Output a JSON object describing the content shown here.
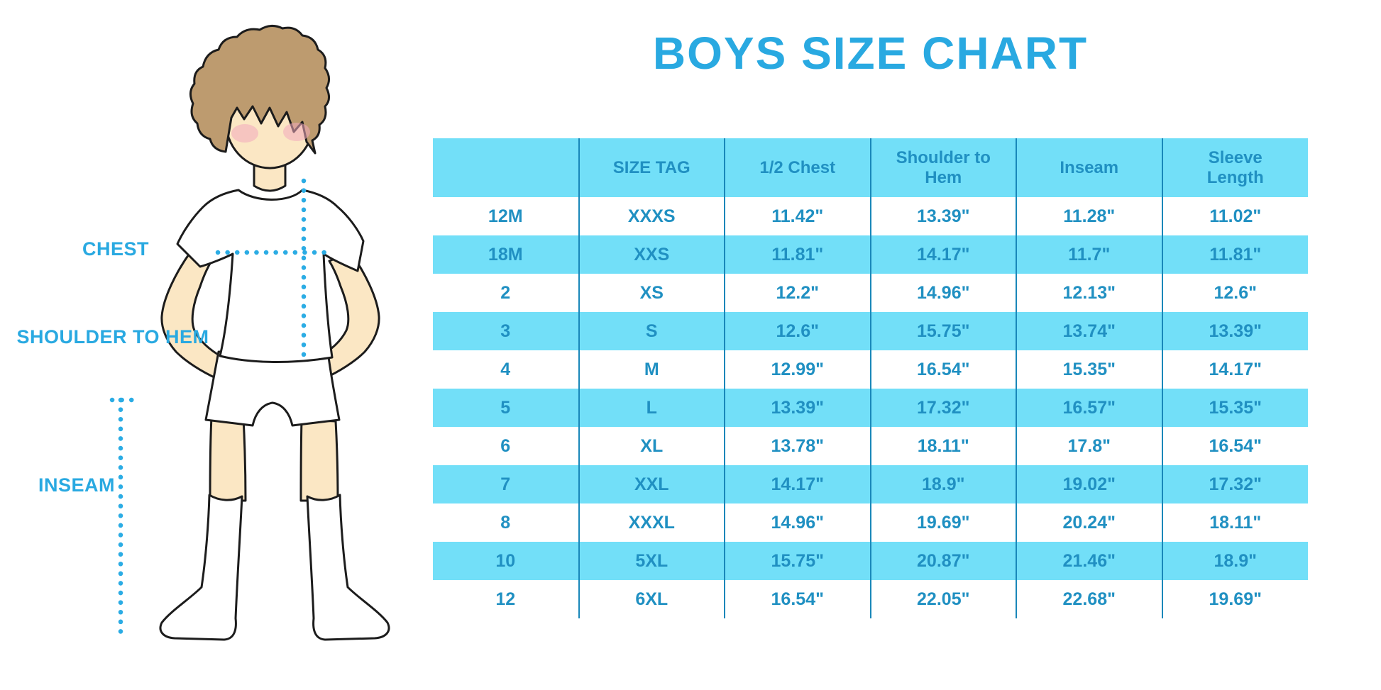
{
  "title": "BOYS SIZE CHART",
  "diagram": {
    "labels": {
      "chest": "CHEST",
      "shoulder_to_hem": "SHOULDER TO HEM",
      "inseam": "INSEAM"
    }
  },
  "chart_data": {
    "type": "table",
    "title": "BOYS SIZE CHART",
    "columns": [
      "",
      "SIZE TAG",
      "1/2 Chest",
      "Shoulder to Hem",
      "Inseam",
      "Sleeve Length"
    ],
    "rows": [
      [
        "12M",
        "XXXS",
        "11.42\"",
        "13.39\"",
        "11.28\"",
        "11.02\""
      ],
      [
        "18M",
        "XXS",
        "11.81\"",
        "14.17\"",
        "11.7\"",
        "11.81\""
      ],
      [
        "2",
        "XS",
        "12.2\"",
        "14.96\"",
        "12.13\"",
        "12.6\""
      ],
      [
        "3",
        "S",
        "12.6\"",
        "15.75\"",
        "13.74\"",
        "13.39\""
      ],
      [
        "4",
        "M",
        "12.99\"",
        "16.54\"",
        "15.35\"",
        "14.17\""
      ],
      [
        "5",
        "L",
        "13.39\"",
        "17.32\"",
        "16.57\"",
        "15.35\""
      ],
      [
        "6",
        "XL",
        "13.78\"",
        "18.11\"",
        "17.8\"",
        "16.54\""
      ],
      [
        "7",
        "XXL",
        "14.17\"",
        "18.9\"",
        "19.02\"",
        "17.32\""
      ],
      [
        "8",
        "XXXL",
        "14.96\"",
        "19.69\"",
        "20.24\"",
        "18.11\""
      ],
      [
        "10",
        "5XL",
        "15.75\"",
        "20.87\"",
        "21.46\"",
        "18.9\""
      ],
      [
        "12",
        "6XL",
        "16.54\"",
        "22.05\"",
        "22.68\"",
        "19.69\""
      ]
    ]
  },
  "colors": {
    "stripe": "#72dff8",
    "text": "#2090c2",
    "line": "#1987b9",
    "title": "#29a9e1",
    "label": "#29a9e1",
    "dotted": "#2bace4",
    "skin": "#fbe7c4",
    "hair": "#bd9b6f",
    "blush": "#f2a9be",
    "outline": "#1c1c1c"
  }
}
